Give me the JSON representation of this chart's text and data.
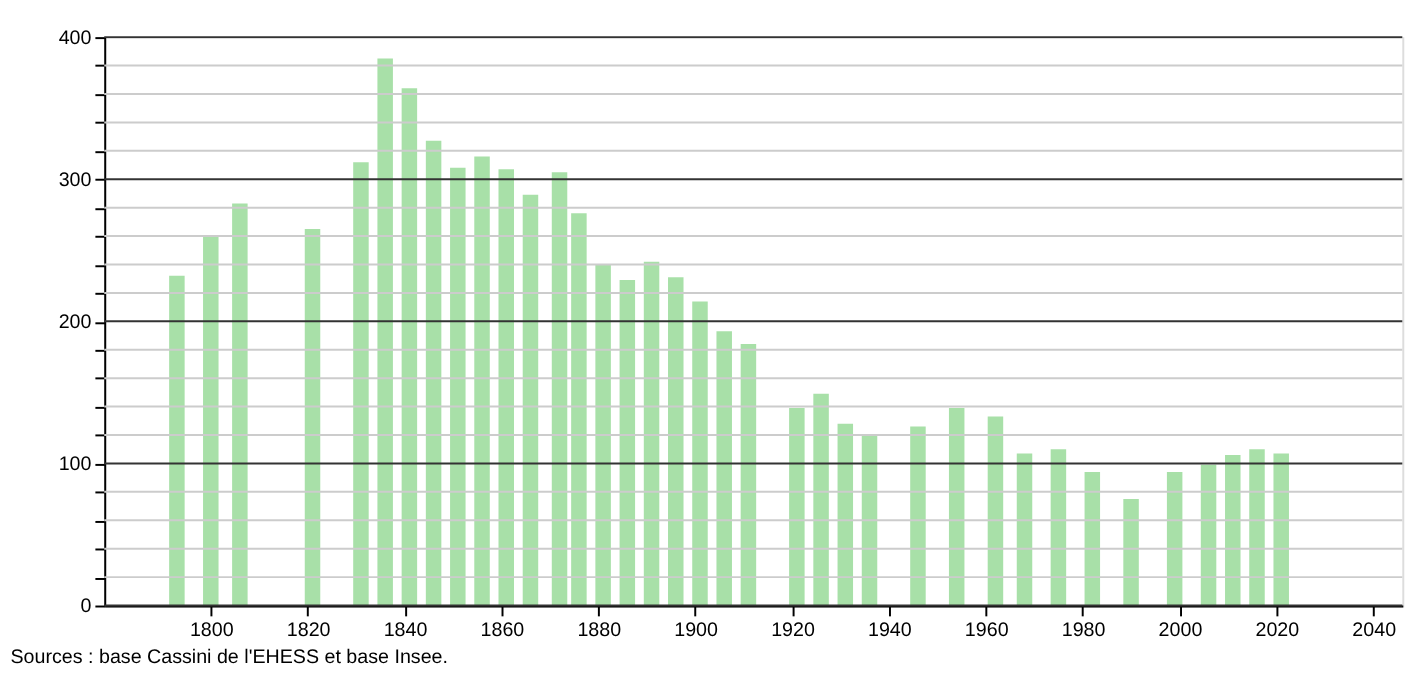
{
  "chart_data": {
    "type": "bar",
    "x": [
      1793,
      1800,
      1806,
      1821,
      1831,
      1836,
      1841,
      1846,
      1851,
      1856,
      1861,
      1866,
      1872,
      1876,
      1881,
      1886,
      1891,
      1896,
      1901,
      1906,
      1911,
      1921,
      1926,
      1931,
      1936,
      1946,
      1954,
      1962,
      1968,
      1975,
      1982,
      1990,
      1999,
      2006,
      2011,
      2016,
      2021
    ],
    "values": [
      232,
      260,
      283,
      265,
      312,
      385,
      364,
      327,
      308,
      316,
      307,
      289,
      305,
      276,
      240,
      229,
      242,
      231,
      214,
      193,
      184,
      139,
      149,
      128,
      120,
      126,
      139,
      133,
      107,
      110,
      94,
      75,
      94,
      99,
      106,
      110,
      107
    ],
    "color": "#a8e0a8",
    "xlim": [
      1778,
      2046
    ],
    "xticks": [
      1800,
      1820,
      1840,
      1860,
      1880,
      1900,
      1920,
      1940,
      1960,
      1980,
      2000,
      2020,
      2040
    ],
    "ylim": [
      0,
      400
    ],
    "yticks": [
      0,
      {
        "value": 20,
        "label": null
      },
      {
        "value": 40,
        "label": null
      },
      {
        "value": 60,
        "label": null
      },
      {
        "value": 80,
        "label": null
      },
      100,
      {
        "value": 120,
        "label": null
      },
      {
        "value": 140,
        "label": null
      },
      {
        "value": 160,
        "label": null
      },
      {
        "value": 180,
        "label": null
      },
      200,
      {
        "value": 220,
        "label": null
      },
      {
        "value": 240,
        "label": null
      },
      {
        "value": 260,
        "label": null
      },
      {
        "value": 280,
        "label": null
      },
      300,
      {
        "value": 320,
        "label": null
      },
      {
        "value": 340,
        "label": null
      },
      {
        "value": 360,
        "label": null
      },
      {
        "value": 380,
        "label": null
      },
      400
    ],
    "grid": "y",
    "annotations": [
      "Sources : base Cassini de l'EHESS et base Insee."
    ]
  }
}
